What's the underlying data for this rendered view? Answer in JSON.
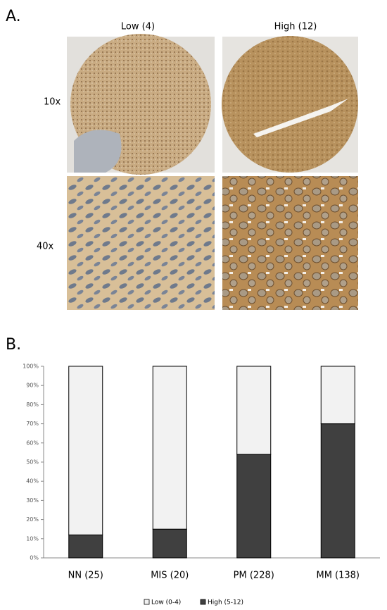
{
  "panel_a": {
    "label": "A.",
    "columns": [
      "Low (4)",
      "High (12)"
    ],
    "rows": [
      "10x",
      "40x"
    ]
  },
  "chart_data": {
    "type": "bar",
    "label": "B.",
    "stacked": true,
    "categories": [
      "NN (25)",
      "MIS (20)",
      "PM (228)",
      "MM (138)"
    ],
    "series": [
      {
        "name": "Low (0-4)",
        "color": "#f2f2f2",
        "values": [
          88,
          85,
          46,
          30
        ]
      },
      {
        "name": "High (5-12)",
        "color": "#404040",
        "values": [
          12,
          15,
          54,
          70
        ]
      }
    ],
    "ylim": [
      0,
      100
    ],
    "yticks": [
      {
        "value": 0,
        "label": "0%"
      },
      {
        "value": 10,
        "label": "10%"
      },
      {
        "value": 20,
        "label": "20%"
      },
      {
        "value": 30,
        "label": "30%"
      },
      {
        "value": 40,
        "label": "40%"
      },
      {
        "value": 50,
        "label": "50%"
      },
      {
        "value": 60,
        "label": "60%"
      },
      {
        "value": 70,
        "label": "70%"
      },
      {
        "value": 80,
        "label": "80%"
      },
      {
        "value": 90,
        "label": "90%"
      },
      {
        "value": 100,
        "label": "100%"
      }
    ],
    "grid": false,
    "legend": "bottom"
  }
}
